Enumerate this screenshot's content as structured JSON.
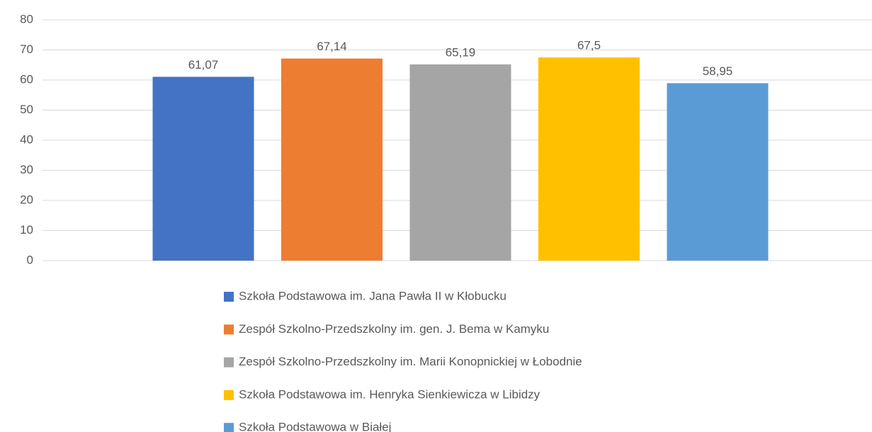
{
  "chart_data": {
    "type": "bar",
    "series": [
      {
        "name": "Szkoła Podstawowa im. Jana Pawła II w Kłobucku",
        "color": "#4472c4",
        "values": [
          61.07
        ],
        "value_labels": [
          "61,07"
        ]
      },
      {
        "name": "Zespół Szkolno-Przedszkolny im. gen. J. Bema w Kamyku",
        "color": "#ed7d31",
        "values": [
          67.14
        ],
        "value_labels": [
          "67,14"
        ]
      },
      {
        "name": "Zespół Szkolno-Przedszkolny im. Marii Konopnickiej w Łobodnie",
        "color": "#a5a5a5",
        "values": [
          65.19
        ],
        "value_labels": [
          "65,19"
        ]
      },
      {
        "name": "Szkoła Podstawowa im. Henryka Sienkiewicza w Libidzy",
        "color": "#ffc000",
        "values": [
          67.5
        ],
        "value_labels": [
          "67,5"
        ]
      },
      {
        "name": "Szkoła Podstawowa w Białej",
        "color": "#5b9bd5",
        "values": [
          58.95
        ],
        "value_labels": [
          "58,95"
        ]
      }
    ],
    "ylim": [
      0,
      80
    ],
    "yticks": [
      0,
      10,
      20,
      30,
      40,
      50,
      60,
      70,
      80
    ],
    "grid": true,
    "legend": "bottom"
  }
}
